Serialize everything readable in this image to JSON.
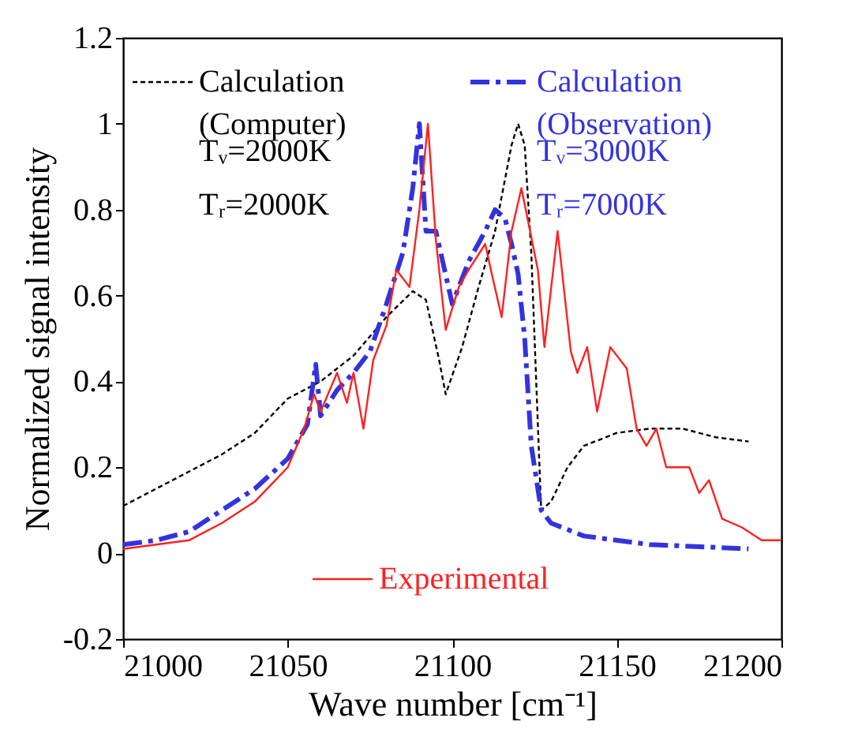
{
  "chart_data": {
    "type": "line",
    "xlabel": "Wave number [cm⁻¹]",
    "ylabel": "Normalized signal intensity",
    "xlim": [
      21000,
      21200
    ],
    "xticks": [
      21000,
      21050,
      21100,
      21150,
      21200
    ],
    "ylim": [
      -0.2,
      1.2
    ],
    "yticks": [
      -0.2,
      0,
      0.2,
      0.4,
      0.6,
      0.8,
      1,
      1.2
    ],
    "grid": false,
    "legend": "top",
    "marker": "none",
    "series": [
      {
        "name": "Calculation (Computer)",
        "color": "#000000",
        "line_style": "dotted",
        "x": [
          21000,
          21020,
          21030,
          21040,
          21050,
          21060,
          21070,
          21080,
          21088,
          21092,
          21096,
          21098,
          21103,
          21108,
          21113,
          21118,
          21120,
          21122,
          21124,
          21126,
          21127,
          21130,
          21135,
          21140,
          21150,
          21160,
          21170,
          21180,
          21190
        ],
        "values": [
          0.11,
          0.19,
          0.23,
          0.28,
          0.36,
          0.4,
          0.46,
          0.55,
          0.61,
          0.59,
          0.45,
          0.37,
          0.48,
          0.62,
          0.75,
          0.95,
          1.0,
          0.95,
          0.7,
          0.3,
          0.1,
          0.12,
          0.2,
          0.25,
          0.28,
          0.29,
          0.29,
          0.27,
          0.26
        ]
      },
      {
        "name": "Calculation (Observation)",
        "color": "#3333dd",
        "line_style": "dashed",
        "x": [
          21000,
          21010,
          21020,
          21030,
          21040,
          21050,
          21056,
          21058.5,
          21060,
          21065,
          21070,
          21075,
          21080,
          21085,
          21088,
          21090,
          21092,
          21095,
          21100,
          21105,
          21110,
          21113,
          21116,
          21118,
          21120,
          21122,
          21124,
          21127,
          21130,
          21140,
          21160,
          21190
        ],
        "values": [
          0.02,
          0.03,
          0.05,
          0.1,
          0.15,
          0.22,
          0.3,
          0.44,
          0.32,
          0.38,
          0.42,
          0.47,
          0.58,
          0.7,
          0.85,
          1.0,
          0.75,
          0.75,
          0.58,
          0.68,
          0.75,
          0.8,
          0.78,
          0.72,
          0.65,
          0.5,
          0.25,
          0.1,
          0.07,
          0.04,
          0.02,
          0.01
        ]
      },
      {
        "name": "Experimental",
        "color": "#ff2020",
        "line_style": "solid",
        "x": [
          21000,
          21010,
          21020,
          21030,
          21040,
          21045,
          21050,
          21055,
          21058,
          21060,
          21065,
          21068,
          21070,
          21073,
          21076,
          21080,
          21083,
          21087,
          21090,
          21092.6,
          21095,
          21098,
          21102,
          21105,
          21110,
          21112,
          21115,
          21118,
          21121,
          21126,
          21128,
          21132,
          21136,
          21138,
          21141,
          21144,
          21148,
          21153,
          21156,
          21159,
          21162,
          21165,
          21172,
          21175,
          21178,
          21182,
          21188,
          21194,
          21200
        ],
        "values": [
          0.01,
          0.02,
          0.03,
          0.07,
          0.12,
          0.16,
          0.2,
          0.29,
          0.37,
          0.33,
          0.42,
          0.35,
          0.42,
          0.29,
          0.45,
          0.53,
          0.66,
          0.62,
          0.8,
          1.0,
          0.73,
          0.52,
          0.62,
          0.66,
          0.72,
          0.65,
          0.55,
          0.75,
          0.85,
          0.66,
          0.48,
          0.75,
          0.47,
          0.42,
          0.48,
          0.33,
          0.48,
          0.43,
          0.29,
          0.25,
          0.29,
          0.2,
          0.2,
          0.14,
          0.17,
          0.08,
          0.06,
          0.03,
          0.03
        ]
      }
    ],
    "annotations": [
      "Tᵥ=2000K",
      "Tᵣ=2000K",
      "Tᵥ=3000K",
      "Tᵣ=7000K"
    ]
  }
}
